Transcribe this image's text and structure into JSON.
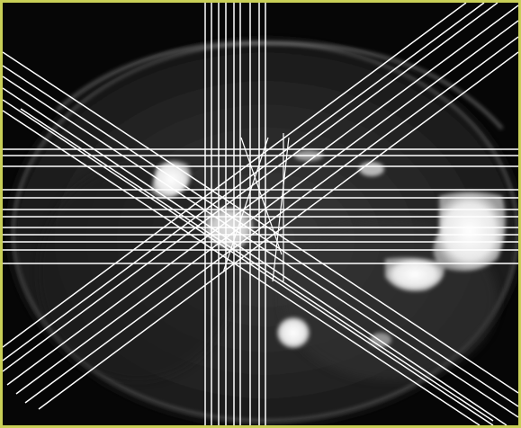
{
  "image": {
    "subject": "axial-abdominal-mri-slice",
    "frame_color": "#c9cf57",
    "background_color": "#060606",
    "line_color": "#ffffff",
    "line_groups": [
      "vertical",
      "horizontal",
      "diagonal-descending",
      "diagonal-ascending"
    ]
  }
}
